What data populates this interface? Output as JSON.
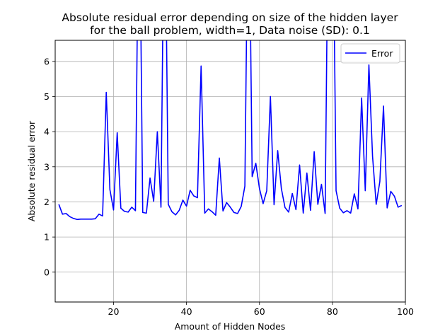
{
  "chart_data": {
    "type": "line",
    "title": "Absolute residual error depending on size of the hidden layer",
    "subtitle": "for the ball problem, width=1, Data noise (SD): 0.1",
    "xlabel": "Amount of Hidden Nodes",
    "ylabel": "Absolute residual error",
    "xlim": [
      4,
      100
    ],
    "ylim": [
      -0.85,
      6.6
    ],
    "xticks": [
      20,
      40,
      60,
      80,
      100
    ],
    "yticks": [
      0,
      1,
      2,
      3,
      4,
      5,
      6
    ],
    "xtick_labels": [
      "20",
      "40",
      "60",
      "80",
      "100"
    ],
    "ytick_labels": [
      "0",
      "1",
      "2",
      "3",
      "4",
      "5",
      "6"
    ],
    "grid": true,
    "legend": {
      "position": "top-right",
      "entries": [
        "Error"
      ]
    },
    "series": [
      {
        "name": "Error",
        "color": "#0000ff",
        "x": [
          5,
          6,
          7,
          8,
          9,
          10,
          11,
          12,
          13,
          14,
          15,
          16,
          17,
          18,
          19,
          20,
          21,
          22,
          23,
          24,
          25,
          26,
          27,
          28,
          29,
          30,
          31,
          32,
          33,
          34,
          35,
          36,
          37,
          38,
          39,
          40,
          41,
          42,
          43,
          44,
          45,
          46,
          47,
          48,
          49,
          50,
          51,
          52,
          53,
          54,
          55,
          56,
          57,
          58,
          59,
          60,
          61,
          62,
          63,
          64,
          65,
          66,
          67,
          68,
          69,
          70,
          71,
          72,
          73,
          74,
          75,
          76,
          77,
          78,
          79,
          80,
          81,
          82,
          83,
          84,
          85,
          86,
          87,
          88,
          89,
          90,
          91,
          92,
          93,
          94,
          95,
          96,
          97,
          98,
          99
        ],
        "values": [
          1.93,
          1.65,
          1.67,
          1.58,
          1.53,
          1.5,
          1.51,
          1.51,
          1.51,
          1.51,
          1.52,
          1.65,
          1.6,
          5.12,
          2.35,
          1.77,
          3.97,
          1.82,
          1.73,
          1.71,
          1.85,
          1.75,
          12.0,
          1.7,
          1.68,
          2.68,
          2.02,
          4.0,
          1.85,
          12.0,
          1.93,
          1.72,
          1.63,
          1.76,
          2.05,
          1.88,
          2.33,
          2.17,
          2.12,
          5.87,
          1.68,
          1.8,
          1.72,
          1.62,
          3.25,
          1.74,
          1.98,
          1.85,
          1.7,
          1.67,
          1.87,
          2.45,
          12.0,
          2.72,
          3.1,
          2.38,
          1.95,
          2.32,
          5.0,
          1.92,
          3.46,
          2.38,
          1.84,
          1.71,
          2.24,
          1.78,
          3.05,
          1.68,
          2.82,
          1.76,
          3.43,
          1.93,
          2.5,
          1.67,
          12.0,
          12.0,
          2.32,
          1.82,
          1.69,
          1.75,
          1.68,
          2.23,
          1.8,
          4.96,
          2.32,
          5.9,
          3.3,
          1.93,
          2.58,
          4.73,
          1.83,
          2.3,
          2.16,
          1.85,
          1.9
        ]
      }
    ]
  }
}
